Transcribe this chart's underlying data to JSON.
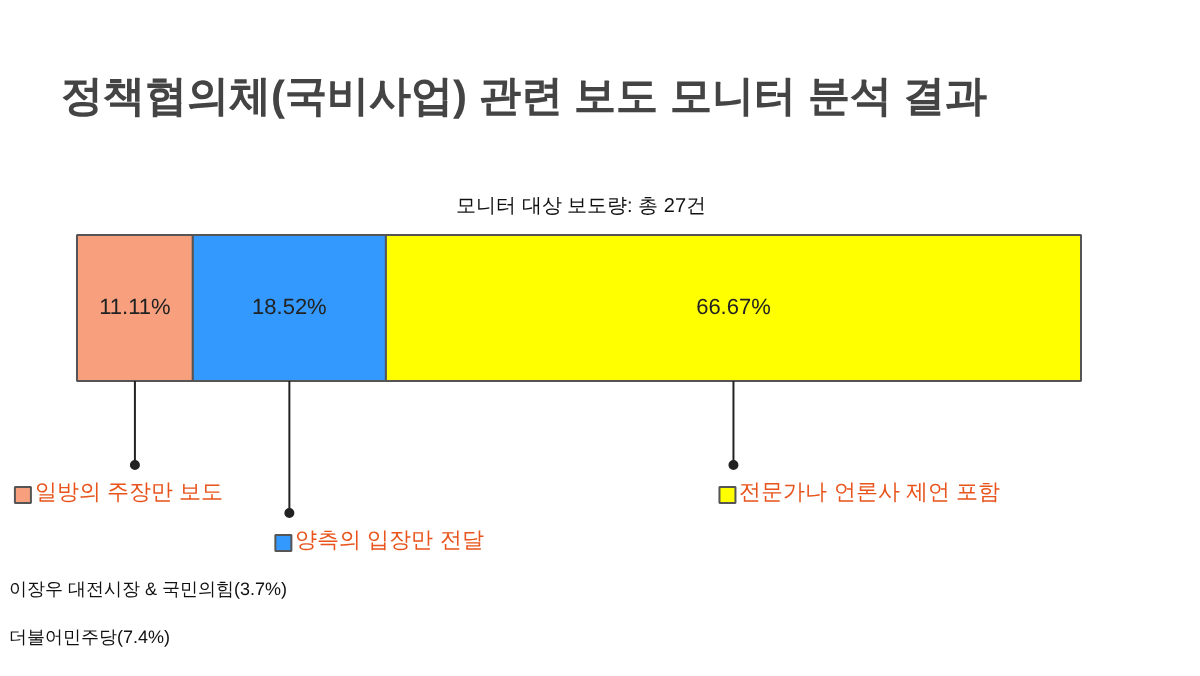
{
  "chart_data": {
    "type": "bar",
    "orientation": "horizontal",
    "stacked": true,
    "title": "정책협의체(국비사업) 관련 보도 모니터 분석 결과",
    "subtitle": "모니터 대상 보도량: 총 27건",
    "categories": [
      null
    ],
    "grid": false,
    "legend": "bottom",
    "tick_labels": false,
    "series": [
      {
        "name": "일방의 주장만 보도",
        "color": "#f8a07e",
        "values": [
          11.11
        ],
        "value_labels": [
          "11.11%"
        ]
      },
      {
        "name": "양측의 입장만 전달",
        "color": "#3399ff",
        "values": [
          18.52
        ],
        "value_labels": [
          "18.52%"
        ]
      },
      {
        "name": "전문가나 언론사 제언 포함",
        "color": "#ffff00",
        "values": [
          66.67
        ],
        "value_labels": [
          "66.67%"
        ]
      }
    ],
    "annotations": [
      "이장우 대전시장 & 국민의힘(3.7%)",
      "더불어민주당(7.4%)"
    ]
  }
}
